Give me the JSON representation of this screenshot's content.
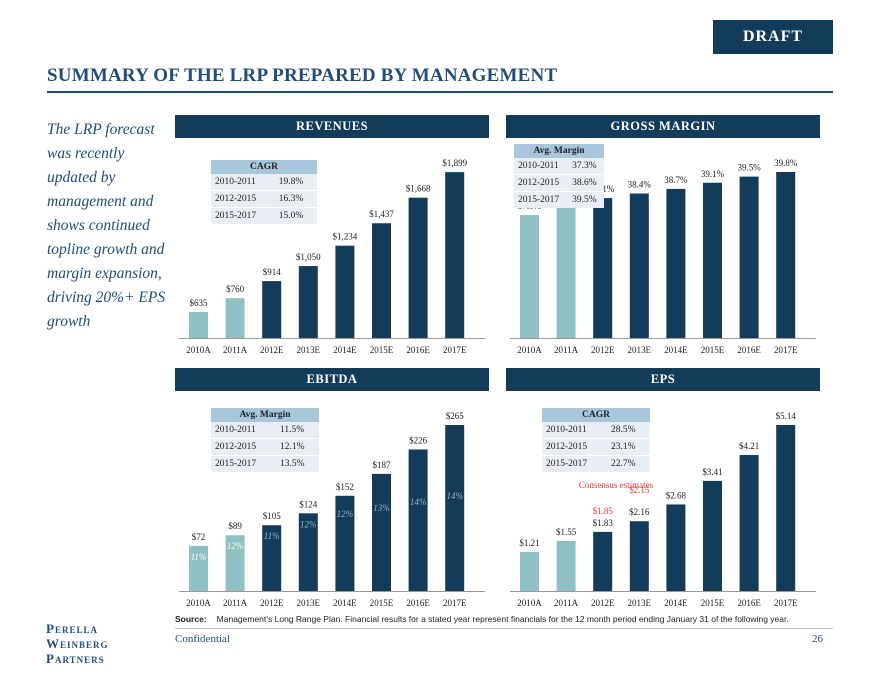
{
  "draft_label": "DRAFT",
  "title": "SUMMARY OF THE LRP PREPARED BY MANAGEMENT",
  "sidebar_text": "The LRP forecast was recently updated by management and shows continued topline growth and margin expansion, driving 20%+ EPS growth",
  "panels": {
    "revenues": {
      "title": "REVENUES"
    },
    "gross_margin": {
      "title": "GROSS MARGIN"
    },
    "ebitda": {
      "title": "EBITDA"
    },
    "eps": {
      "title": "EPS"
    }
  },
  "tables": {
    "revenues": {
      "header": "CAGR",
      "rows": [
        [
          "2010-2011",
          "19.8%"
        ],
        [
          "2012-2015",
          "16.3%"
        ],
        [
          "2015-2017",
          "15.0%"
        ]
      ]
    },
    "gross_margin": {
      "header": "Avg. Margin",
      "rows": [
        [
          "2010-2011",
          "37.3%"
        ],
        [
          "2012-2015",
          "38.6%"
        ],
        [
          "2015-2017",
          "39.5%"
        ]
      ]
    },
    "ebitda": {
      "header": "Avg. Margin",
      "rows": [
        [
          "2010-2011",
          "11.5%"
        ],
        [
          "2012-2015",
          "12.1%"
        ],
        [
          "2015-2017",
          "13.5%"
        ]
      ]
    },
    "eps": {
      "header": "CAGR",
      "rows": [
        [
          "2010-2011",
          "28.5%"
        ],
        [
          "2012-2015",
          "23.1%"
        ],
        [
          "2015-2017",
          "22.7%"
        ]
      ]
    }
  },
  "colors": {
    "actual": "#8fc1c4",
    "estimate": "#123c5a",
    "consensus": "#e53935",
    "header": "#123c5a",
    "accent": "#1f4e79"
  },
  "chart_data": [
    {
      "type": "bar",
      "panel": "revenues",
      "categories": [
        "2010A",
        "2011A",
        "2012E",
        "2013E",
        "2014E",
        "2015E",
        "2016E",
        "2017E"
      ],
      "values": [
        635,
        760,
        914,
        1050,
        1234,
        1437,
        1668,
        1899
      ],
      "labels": [
        "$635",
        "$760",
        "$914",
        "$1,050",
        "$1,234",
        "$1,437",
        "$1,668",
        "$1,899"
      ],
      "ylim": [
        400,
        1900
      ]
    },
    {
      "type": "bar",
      "panel": "gross_margin",
      "categories": [
        "2010A",
        "2011A",
        "2012E",
        "2013E",
        "2014E",
        "2015E",
        "2016E",
        "2017E"
      ],
      "values": [
        37.0,
        37.7,
        38.1,
        38.4,
        38.7,
        39.1,
        39.5,
        39.8
      ],
      "labels": [
        "37.0%",
        "37.7%",
        "38.1%",
        "38.4%",
        "38.7%",
        "39.1%",
        "39.5%",
        "39.8%"
      ],
      "ylim": [
        29,
        39.8
      ]
    },
    {
      "type": "bar",
      "panel": "ebitda",
      "categories": [
        "2010A",
        "2011A",
        "2012E",
        "2013E",
        "2014E",
        "2015E",
        "2016E",
        "2017E"
      ],
      "values": [
        72,
        89,
        105,
        124,
        152,
        187,
        226,
        265
      ],
      "labels": [
        "$72",
        "$89",
        "$105",
        "$124",
        "$152",
        "$187",
        "$226",
        "$265"
      ],
      "margins": [
        "11%",
        "12%",
        "11%",
        "12%",
        "12%",
        "13%",
        "14%",
        "14%"
      ],
      "ylim": [
        0,
        265
      ]
    },
    {
      "type": "bar",
      "panel": "eps",
      "categories": [
        "2010A",
        "2011A",
        "2012E",
        "2013E",
        "2014E",
        "2015E",
        "2016E",
        "2017E"
      ],
      "values": [
        1.21,
        1.55,
        1.83,
        2.16,
        2.68,
        3.41,
        4.21,
        5.14
      ],
      "labels": [
        "$1.21",
        "$1.55",
        "$1.83",
        "$2.16",
        "$2.68",
        "$3.41",
        "$4.21",
        "$5.14"
      ],
      "consensus": {
        "title": "Consensus estimates",
        "values": [
          null,
          null,
          1.85,
          2.15,
          null,
          null,
          null,
          null
        ],
        "labels": [
          "",
          "",
          "$1.85",
          "$2.15",
          "",
          "",
          "",
          ""
        ]
      },
      "ylim": [
        0,
        5.14
      ]
    }
  ],
  "footer": {
    "source_label": "Source:",
    "source_text": "Management’s Long Range Plan. Financial results for a stated year represent financials for the 12 month period ending January 31 of the following year.",
    "confidential": "Confidential",
    "page_number": "26",
    "logo_lines": [
      "Perella",
      "Weinberg",
      "Partners"
    ]
  }
}
